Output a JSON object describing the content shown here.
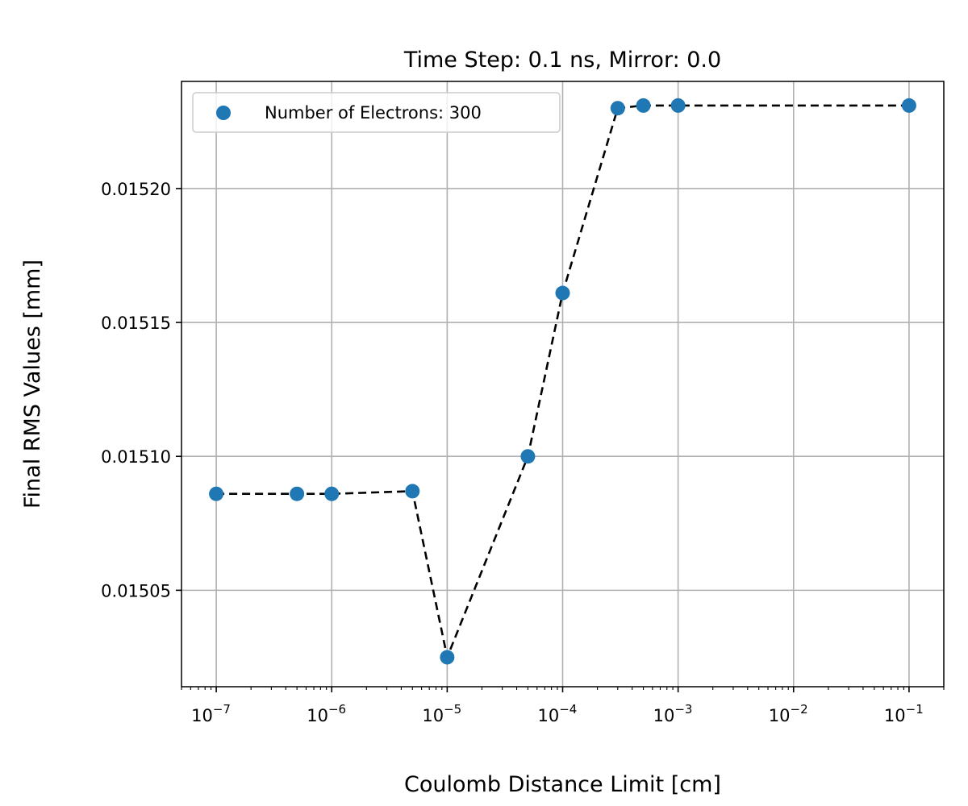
{
  "chart_data": {
    "type": "scatter",
    "title": "Time Step: 0.1 ns, Mirror: 0.0",
    "xlabel": "Coulomb Distance Limit [cm]",
    "ylabel": "Final RMS Values [mm]",
    "x_scale": "log",
    "xlim": [
      5e-08,
      0.2
    ],
    "ylim": [
      0.015014,
      0.01524
    ],
    "grid": true,
    "legend_position": "top-left",
    "x_ticks": [
      {
        "value": 1e-07,
        "base": "10",
        "exp": "−7"
      },
      {
        "value": 1e-06,
        "base": "10",
        "exp": "−6"
      },
      {
        "value": 1e-05,
        "base": "10",
        "exp": "−5"
      },
      {
        "value": 0.0001,
        "base": "10",
        "exp": "−4"
      },
      {
        "value": 0.001,
        "base": "10",
        "exp": "−3"
      },
      {
        "value": 0.01,
        "base": "10",
        "exp": "−2"
      },
      {
        "value": 0.1,
        "base": "10",
        "exp": "−1"
      }
    ],
    "y_ticks": [
      {
        "value": 0.01505,
        "label": "0.01505"
      },
      {
        "value": 0.0151,
        "label": "0.01510"
      },
      {
        "value": 0.01515,
        "label": "0.01515"
      },
      {
        "value": 0.0152,
        "label": "0.01520"
      }
    ],
    "series": [
      {
        "name": "Number of Electrons: 300",
        "marker_color": "#1f77b4",
        "line_color": "#000000",
        "line_style": "dashed",
        "points": [
          {
            "x": 1e-07,
            "y": 0.015086
          },
          {
            "x": 5e-07,
            "y": 0.015086
          },
          {
            "x": 1e-06,
            "y": 0.015086
          },
          {
            "x": 5e-06,
            "y": 0.015087
          },
          {
            "x": 1e-05,
            "y": 0.015025
          },
          {
            "x": 5e-05,
            "y": 0.0151
          },
          {
            "x": 0.0001,
            "y": 0.015161
          },
          {
            "x": 0.0003,
            "y": 0.01523
          },
          {
            "x": 0.0005,
            "y": 0.015231
          },
          {
            "x": 0.001,
            "y": 0.015231
          },
          {
            "x": 0.1,
            "y": 0.015231
          }
        ]
      }
    ]
  }
}
